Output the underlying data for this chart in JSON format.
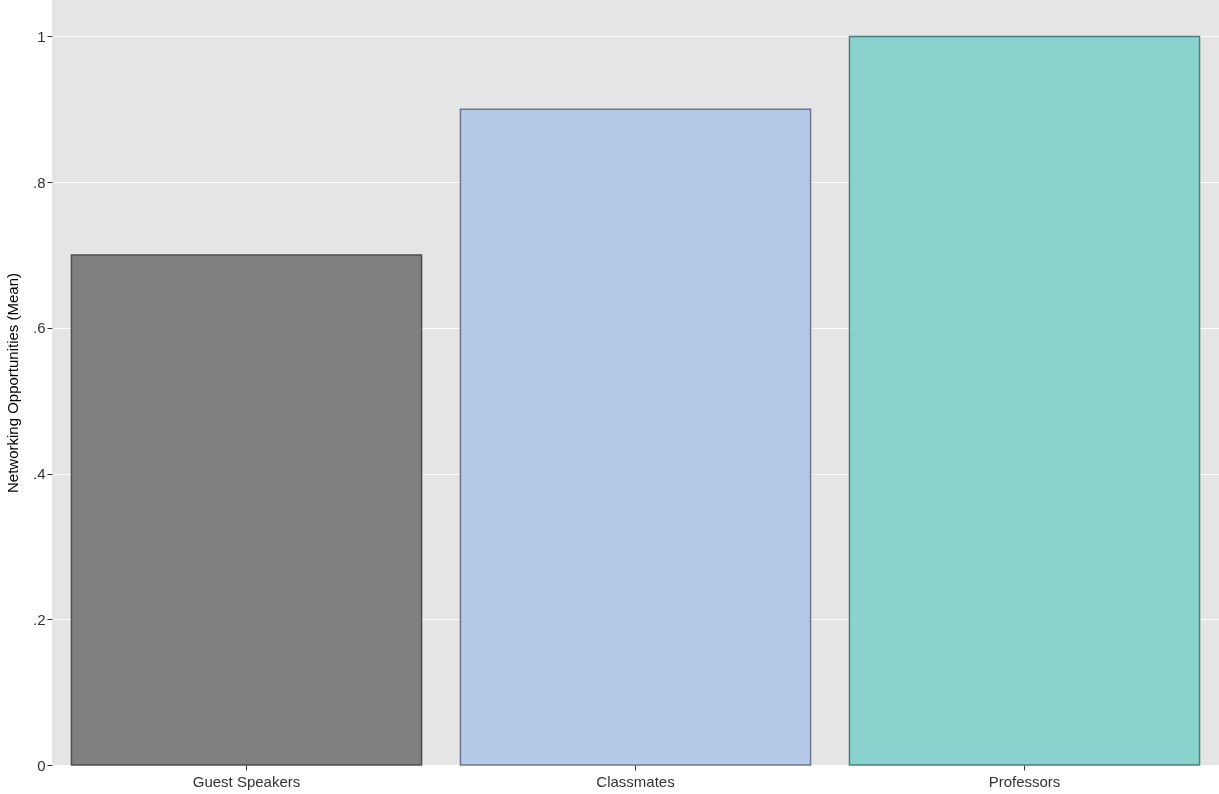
{
  "chart_data": {
    "type": "bar",
    "ylabel": "Networking Opportunities (Mean)",
    "categories": [
      "Guest Speakers",
      "Classmates",
      "Professors"
    ],
    "values": [
      0.7,
      0.9,
      1.0
    ],
    "colors": [
      "#808080",
      "#b5cae8",
      "#8ad2ce"
    ],
    "ylim": [
      0,
      1.05
    ],
    "yticks": [
      0,
      {
        "value": 0.2,
        "label": ".2"
      },
      {
        "value": 0.4,
        "label": ".4"
      },
      {
        "value": 0.6,
        "label": ".6"
      },
      {
        "value": 0.8,
        "label": ".8"
      },
      1
    ],
    "grid": "y"
  }
}
